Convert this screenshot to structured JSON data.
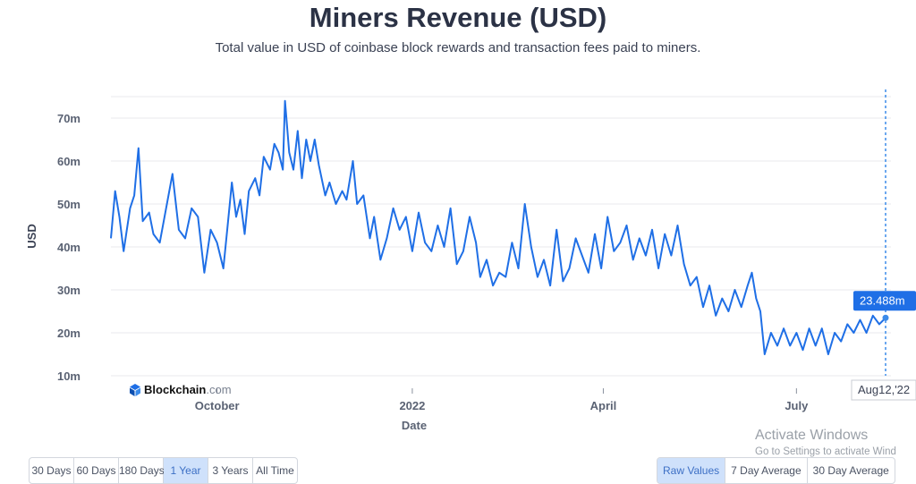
{
  "title": "Miners Revenue (USD)",
  "subtitle": "Total value in USD of coinbase block rewards and transaction fees paid to miners.",
  "logo": {
    "brand": "Blockchain",
    "domain": ".com"
  },
  "chart_data": {
    "type": "line",
    "title": "Miners Revenue (USD)",
    "xlabel": "Date",
    "ylabel": "USD",
    "y_ticks": [
      "10m",
      "20m",
      "30m",
      "40m",
      "50m",
      "60m",
      "70m"
    ],
    "ylim": [
      10,
      75
    ],
    "y_unit": "millions USD",
    "x_range": [
      "2021-08-12",
      "2022-08-12"
    ],
    "x_ticks": [
      {
        "label": "October",
        "date": "2021-10-01"
      },
      {
        "label": "2022",
        "date": "2022-01-01"
      },
      {
        "label": "April",
        "date": "2022-04-01"
      },
      {
        "label": "July",
        "date": "2022-07-01"
      }
    ],
    "grid": true,
    "line_color": "#1f6fe6",
    "series": [
      {
        "points": [
          [
            "2021-08-12",
            42
          ],
          [
            "2021-08-14",
            53
          ],
          [
            "2021-08-16",
            47
          ],
          [
            "2021-08-18",
            39
          ],
          [
            "2021-08-21",
            49
          ],
          [
            "2021-08-23",
            52
          ],
          [
            "2021-08-25",
            63
          ],
          [
            "2021-08-27",
            46
          ],
          [
            "2021-08-30",
            48
          ],
          [
            "2021-09-01",
            43
          ],
          [
            "2021-09-04",
            41
          ],
          [
            "2021-09-07",
            49
          ],
          [
            "2021-09-10",
            57
          ],
          [
            "2021-09-13",
            44
          ],
          [
            "2021-09-16",
            42
          ],
          [
            "2021-09-19",
            49
          ],
          [
            "2021-09-22",
            47
          ],
          [
            "2021-09-25",
            34
          ],
          [
            "2021-09-28",
            44
          ],
          [
            "2021-10-01",
            41
          ],
          [
            "2021-10-04",
            35
          ],
          [
            "2021-10-06",
            45
          ],
          [
            "2021-10-08",
            55
          ],
          [
            "2021-10-10",
            47
          ],
          [
            "2021-10-12",
            51
          ],
          [
            "2021-10-14",
            43
          ],
          [
            "2021-10-16",
            53
          ],
          [
            "2021-10-19",
            56
          ],
          [
            "2021-10-21",
            52
          ],
          [
            "2021-10-23",
            61
          ],
          [
            "2021-10-26",
            58
          ],
          [
            "2021-10-28",
            64
          ],
          [
            "2021-10-30",
            62
          ],
          [
            "2021-11-01",
            58
          ],
          [
            "2021-11-02",
            74
          ],
          [
            "2021-11-04",
            62
          ],
          [
            "2021-11-06",
            58
          ],
          [
            "2021-11-08",
            67
          ],
          [
            "2021-11-10",
            56
          ],
          [
            "2021-11-12",
            65
          ],
          [
            "2021-11-14",
            60
          ],
          [
            "2021-11-16",
            65
          ],
          [
            "2021-11-18",
            59
          ],
          [
            "2021-11-21",
            52
          ],
          [
            "2021-11-23",
            55
          ],
          [
            "2021-11-26",
            50
          ],
          [
            "2021-11-29",
            53
          ],
          [
            "2021-12-01",
            51
          ],
          [
            "2021-12-04",
            60
          ],
          [
            "2021-12-06",
            50
          ],
          [
            "2021-12-09",
            52
          ],
          [
            "2021-12-12",
            42
          ],
          [
            "2021-12-14",
            47
          ],
          [
            "2021-12-17",
            37
          ],
          [
            "2021-12-20",
            42
          ],
          [
            "2021-12-23",
            49
          ],
          [
            "2021-12-26",
            44
          ],
          [
            "2021-12-29",
            47
          ],
          [
            "2022-01-01",
            39
          ],
          [
            "2022-01-04",
            48
          ],
          [
            "2022-01-07",
            41
          ],
          [
            "2022-01-10",
            39
          ],
          [
            "2022-01-13",
            45
          ],
          [
            "2022-01-16",
            40
          ],
          [
            "2022-01-19",
            49
          ],
          [
            "2022-01-22",
            36
          ],
          [
            "2022-01-25",
            39
          ],
          [
            "2022-01-28",
            47
          ],
          [
            "2022-01-31",
            41
          ],
          [
            "2022-02-02",
            33
          ],
          [
            "2022-02-05",
            37
          ],
          [
            "2022-02-08",
            31
          ],
          [
            "2022-02-11",
            34
          ],
          [
            "2022-02-14",
            33
          ],
          [
            "2022-02-17",
            41
          ],
          [
            "2022-02-20",
            35
          ],
          [
            "2022-02-23",
            50
          ],
          [
            "2022-02-26",
            40
          ],
          [
            "2022-03-01",
            33
          ],
          [
            "2022-03-04",
            37
          ],
          [
            "2022-03-07",
            31
          ],
          [
            "2022-03-10",
            44
          ],
          [
            "2022-03-13",
            32
          ],
          [
            "2022-03-16",
            35
          ],
          [
            "2022-03-19",
            42
          ],
          [
            "2022-03-22",
            38
          ],
          [
            "2022-03-25",
            34
          ],
          [
            "2022-03-28",
            43
          ],
          [
            "2022-03-31",
            35
          ],
          [
            "2022-04-03",
            47
          ],
          [
            "2022-04-06",
            39
          ],
          [
            "2022-04-09",
            41
          ],
          [
            "2022-04-12",
            45
          ],
          [
            "2022-04-15",
            37
          ],
          [
            "2022-04-18",
            42
          ],
          [
            "2022-04-21",
            38
          ],
          [
            "2022-04-24",
            44
          ],
          [
            "2022-04-27",
            35
          ],
          [
            "2022-04-30",
            43
          ],
          [
            "2022-05-03",
            38
          ],
          [
            "2022-05-06",
            45
          ],
          [
            "2022-05-09",
            36
          ],
          [
            "2022-05-12",
            31
          ],
          [
            "2022-05-15",
            33
          ],
          [
            "2022-05-18",
            26
          ],
          [
            "2022-05-21",
            31
          ],
          [
            "2022-05-24",
            24
          ],
          [
            "2022-05-27",
            28
          ],
          [
            "2022-05-30",
            25
          ],
          [
            "2022-06-02",
            30
          ],
          [
            "2022-06-05",
            26
          ],
          [
            "2022-06-08",
            31
          ],
          [
            "2022-06-10",
            34
          ],
          [
            "2022-06-12",
            28
          ],
          [
            "2022-06-14",
            25
          ],
          [
            "2022-06-16",
            15
          ],
          [
            "2022-06-19",
            20
          ],
          [
            "2022-06-22",
            17
          ],
          [
            "2022-06-25",
            21
          ],
          [
            "2022-06-28",
            17
          ],
          [
            "2022-07-01",
            20
          ],
          [
            "2022-07-04",
            16
          ],
          [
            "2022-07-07",
            21
          ],
          [
            "2022-07-10",
            17
          ],
          [
            "2022-07-13",
            21
          ],
          [
            "2022-07-16",
            15
          ],
          [
            "2022-07-19",
            20
          ],
          [
            "2022-07-22",
            18
          ],
          [
            "2022-07-25",
            22
          ],
          [
            "2022-07-28",
            20
          ],
          [
            "2022-07-31",
            23
          ],
          [
            "2022-08-03",
            20
          ],
          [
            "2022-08-06",
            24
          ],
          [
            "2022-08-09",
            22
          ],
          [
            "2022-08-12",
            23.488
          ]
        ]
      }
    ],
    "tooltip": {
      "value_label": "23.488m",
      "date_label": "Aug12,'22"
    }
  },
  "range_buttons": [
    {
      "label": "30 Days",
      "active": false
    },
    {
      "label": "60 Days",
      "active": false
    },
    {
      "label": "180 Days",
      "active": false
    },
    {
      "label": "1 Year",
      "active": true
    },
    {
      "label": "3 Years",
      "active": false
    },
    {
      "label": "All Time",
      "active": false
    }
  ],
  "mode_buttons": [
    {
      "label": "Raw Values",
      "active": true
    },
    {
      "label": "7 Day Average",
      "active": false
    },
    {
      "label": "30 Day Average",
      "active": false
    }
  ],
  "watermark": {
    "title": "Activate Windows",
    "subtitle": "Go to Settings to activate Wind"
  }
}
